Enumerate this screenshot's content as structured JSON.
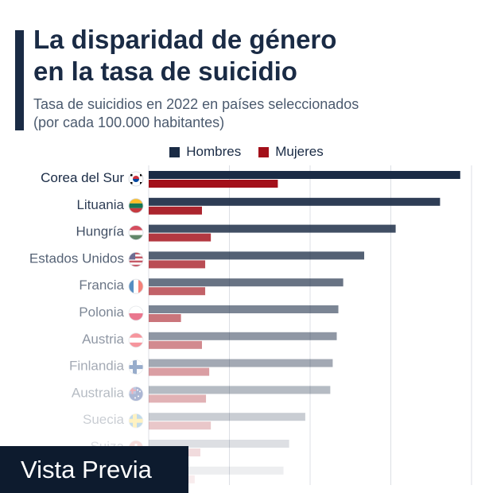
{
  "title_line1": "La disparidad de género",
  "title_line2": "en la tasa de suicidio",
  "subtitle_line1": "Tasa de suicidios en 2022 en países seleccionados",
  "subtitle_line2": "(por cada 100.000 habitantes)",
  "preview_label": "Vista Previa",
  "colors": {
    "men": "#1a2b45",
    "women": "#a3101a",
    "grid": "#dcdfe4"
  },
  "chart_data": {
    "type": "bar",
    "orientation": "horizontal",
    "title": "La disparidad de género en la tasa de suicidio",
    "subtitle": "Tasa de suicidios en 2022 en países seleccionados (por cada 100.000 habitantes)",
    "legend": "top-center",
    "grid": true,
    "xlim": [
      0,
      40
    ],
    "categories": [
      "Corea del Sur",
      "Lituania",
      "Hungría",
      "Estados Unidos",
      "Francia",
      "Polonia",
      "Austria",
      "Finlandia",
      "Australia",
      "Suecia",
      "Suiza",
      ""
    ],
    "flags": [
      "kr",
      "lt",
      "hu",
      "us",
      "fr",
      "pl",
      "at",
      "fi",
      "au",
      "se",
      "ch",
      ""
    ],
    "series": [
      {
        "name": "Hombres",
        "values": [
          38.6,
          36.1,
          30.6,
          26.7,
          24.1,
          23.5,
          23.3,
          22.8,
          22.5,
          19.4,
          17.4,
          16.7
        ]
      },
      {
        "name": "Mujeres",
        "values": [
          16.0,
          6.6,
          7.7,
          7.0,
          7.0,
          4.0,
          6.6,
          7.5,
          7.1,
          7.7,
          6.4,
          5.7
        ]
      }
    ]
  }
}
